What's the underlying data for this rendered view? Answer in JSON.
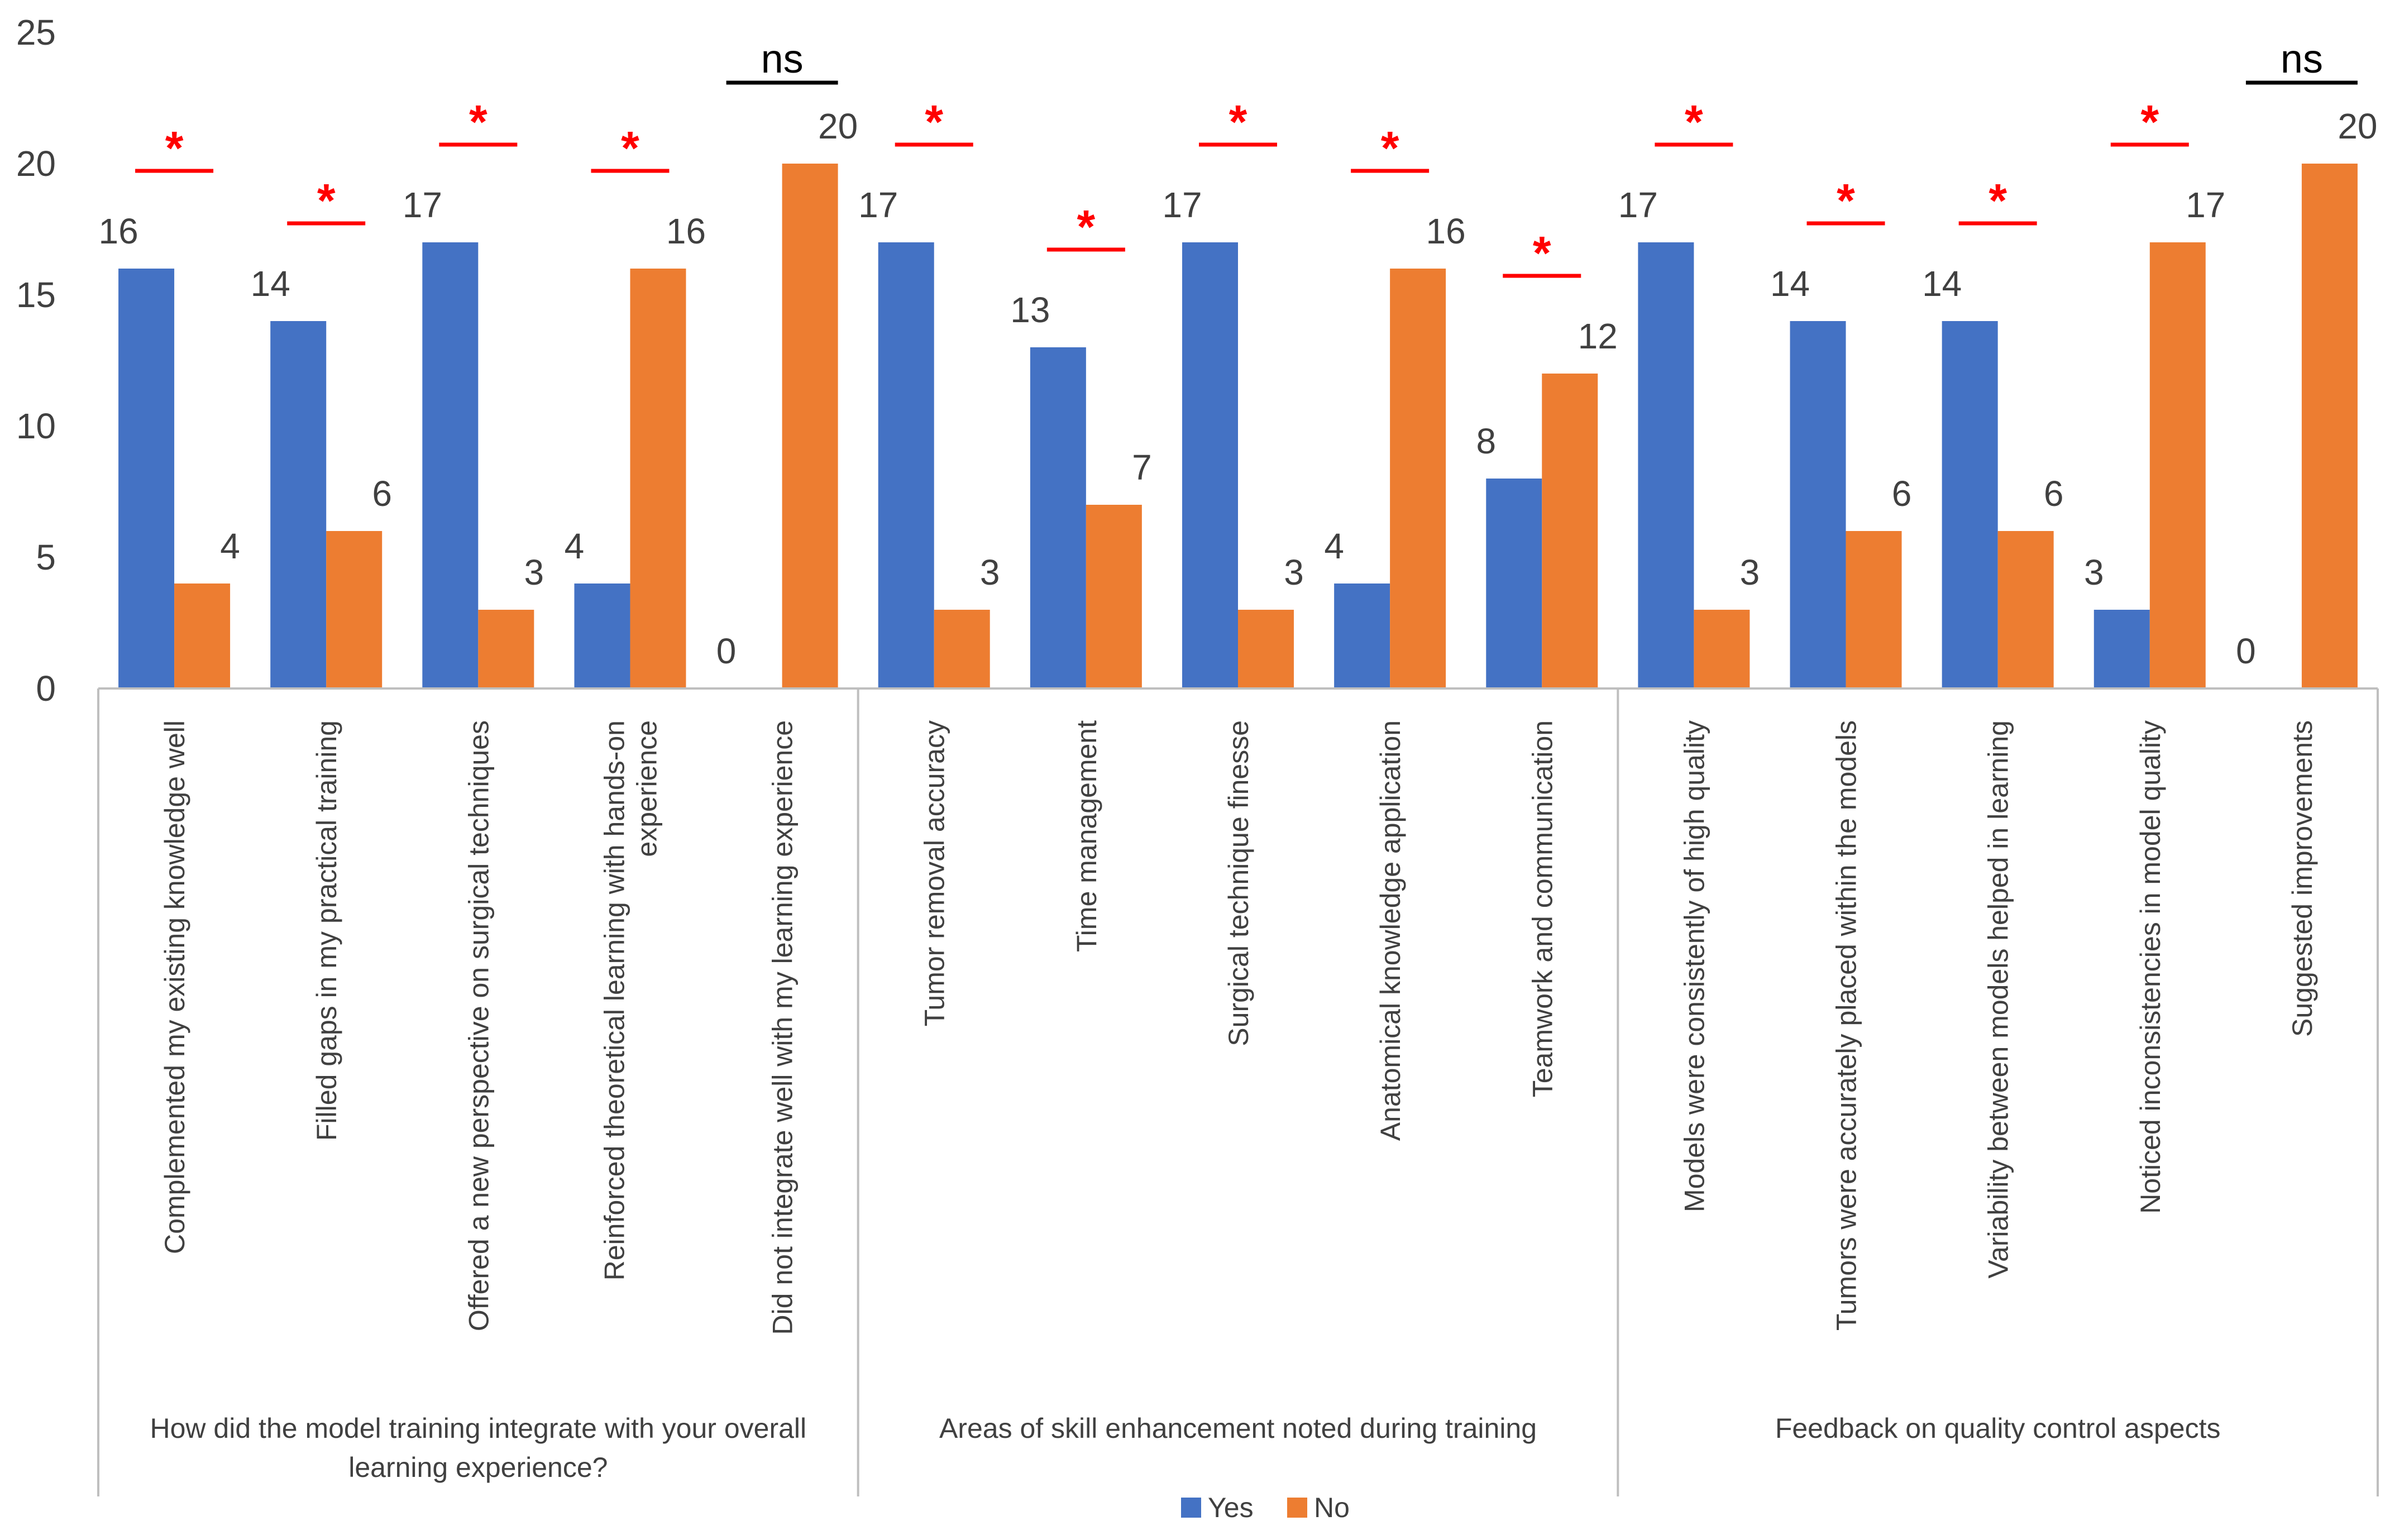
{
  "chart_data": {
    "type": "bar",
    "title": "",
    "xlabel": "",
    "ylabel": "",
    "ylim": [
      0,
      25
    ],
    "yticks": [
      0,
      5,
      10,
      15,
      20,
      25
    ],
    "grid": false,
    "legend_position": "bottom-center",
    "groups": [
      {
        "name": "How did the model training integrate with your overall learning experience?",
        "label_lines": [
          "How did the model training integrate with your overall",
          "learning experience?"
        ],
        "categories": [
          {
            "label_lines": [
              "Complemented my existing knowledge well"
            ],
            "yes": 16,
            "no": 4,
            "sig": "*"
          },
          {
            "label_lines": [
              "Filled gaps in my practical training"
            ],
            "yes": 14,
            "no": 6,
            "sig": "*"
          },
          {
            "label_lines": [
              "Offered a new perspective on surgical techniques"
            ],
            "yes": 17,
            "no": 3,
            "sig": "*"
          },
          {
            "label_lines": [
              "Reinforced theoretical learning with hands-on",
              "experience"
            ],
            "yes": 4,
            "no": 16,
            "sig": "*"
          },
          {
            "label_lines": [
              "Did not integrate well with my learning experience"
            ],
            "yes": 0,
            "no": 20,
            "sig": "ns"
          }
        ]
      },
      {
        "name": "Areas of skill enhancement noted during training",
        "label_lines": [
          "Areas of skill enhancement noted during training"
        ],
        "categories": [
          {
            "label_lines": [
              "Tumor removal accuracy"
            ],
            "yes": 17,
            "no": 3,
            "sig": "*"
          },
          {
            "label_lines": [
              "Time management"
            ],
            "yes": 13,
            "no": 7,
            "sig": "*"
          },
          {
            "label_lines": [
              "Surgical technique finesse"
            ],
            "yes": 17,
            "no": 3,
            "sig": "*"
          },
          {
            "label_lines": [
              "Anatomical knowledge application"
            ],
            "yes": 4,
            "no": 16,
            "sig": "*"
          },
          {
            "label_lines": [
              "Teamwork and communication"
            ],
            "yes": 8,
            "no": 12,
            "sig": "*"
          }
        ]
      },
      {
        "name": "Feedback on quality control aspects",
        "label_lines": [
          "Feedback on quality control aspects"
        ],
        "categories": [
          {
            "label_lines": [
              "Models were consistently of high quality"
            ],
            "yes": 17,
            "no": 3,
            "sig": "*"
          },
          {
            "label_lines": [
              "Tumors were accurately placed within the models"
            ],
            "yes": 14,
            "no": 6,
            "sig": "*"
          },
          {
            "label_lines": [
              "Variability between models helped in learning"
            ],
            "yes": 14,
            "no": 6,
            "sig": "*"
          },
          {
            "label_lines": [
              "Noticed inconsistencies in model quality"
            ],
            "yes": 3,
            "no": 17,
            "sig": "*"
          },
          {
            "label_lines": [
              "Suggested improvements"
            ],
            "yes": 0,
            "no": 20,
            "sig": "ns"
          }
        ]
      }
    ],
    "series": [
      {
        "name": "Yes",
        "key": "yes",
        "color": "#4472C4"
      },
      {
        "name": "No",
        "key": "no",
        "color": "#ED7D31"
      }
    ],
    "significance_colors": {
      "star": "#FF0000",
      "ns": "#000000"
    }
  }
}
